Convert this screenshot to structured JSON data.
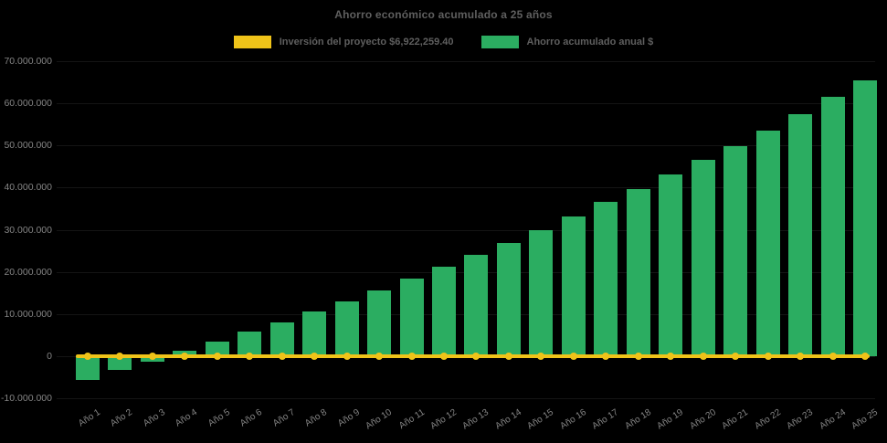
{
  "chart_data": {
    "type": "bar",
    "title": "Ahorro económico acumulado a 25 años",
    "xlabel": "",
    "ylabel": "",
    "categories": [
      "Año 1",
      "Año 2",
      "Año 3",
      "Año 4",
      "Año 5",
      "Año 6",
      "Año 7",
      "Año 8",
      "Año 9",
      "Año 10",
      "Año 11",
      "Año 12",
      "Año 13",
      "Año 14",
      "Año 15",
      "Año 16",
      "Año 17",
      "Año 18",
      "Año 19",
      "Año 20",
      "Año 21",
      "Año 22",
      "Año 23",
      "Año 24",
      "Año 25"
    ],
    "series": [
      {
        "name": "Inversión del proyecto $6,922,259.40",
        "type": "line",
        "color": "#EFC319",
        "marker": "circle",
        "values": [
          0,
          0,
          0,
          0,
          0,
          0,
          0,
          0,
          0,
          0,
          0,
          0,
          0,
          0,
          0,
          0,
          0,
          0,
          0,
          0,
          0,
          0,
          0,
          0,
          0
        ]
      },
      {
        "name": "Ahorro acumulado anual $",
        "type": "bar",
        "color": "#2BAD61",
        "values": [
          -5600000,
          -3300000,
          -1200000,
          1300000,
          3400000,
          5800000,
          8000000,
          10600000,
          13000000,
          15700000,
          18400000,
          21200000,
          24000000,
          26900000,
          29800000,
          33100000,
          36600000,
          39600000,
          43100000,
          46700000,
          49900000,
          53500000,
          57400000,
          61600000,
          65500000
        ]
      }
    ],
    "ylim": [
      -10000000,
      70000000
    ],
    "yticks": [
      {
        "value": 70000000,
        "label": "70.000.000"
      },
      {
        "value": 60000000,
        "label": "60.000.000"
      },
      {
        "value": 50000000,
        "label": "50.000.000"
      },
      {
        "value": 40000000,
        "label": "40.000.000"
      },
      {
        "value": 30000000,
        "label": "30.000.000"
      },
      {
        "value": 20000000,
        "label": "20.000.000"
      },
      {
        "value": 10000000,
        "label": "10.000.000"
      },
      {
        "value": 0,
        "label": "0"
      },
      {
        "value": -10000000,
        "label": "-10.000.000"
      }
    ],
    "grid": "off",
    "legend_position": "top-center",
    "background": "#000000",
    "text_color": "#5f5f5f",
    "axis_label_color": "#848484"
  }
}
